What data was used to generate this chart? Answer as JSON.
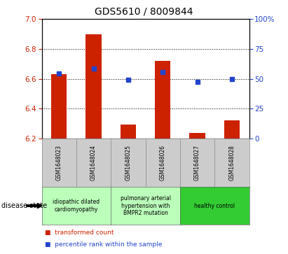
{
  "title": "GDS5610 / 8009844",
  "samples": [
    "GSM1648023",
    "GSM1648024",
    "GSM1648025",
    "GSM1648026",
    "GSM1648027",
    "GSM1648028"
  ],
  "red_values": [
    6.63,
    6.9,
    6.295,
    6.72,
    6.235,
    6.32
  ],
  "blue_values": [
    6.635,
    6.67,
    6.595,
    6.645,
    6.578,
    6.598
  ],
  "ylim_left": [
    6.2,
    7.0
  ],
  "ylim_right": [
    0,
    100
  ],
  "yticks_left": [
    6.2,
    6.4,
    6.6,
    6.8,
    7.0
  ],
  "yticks_right": [
    0,
    25,
    50,
    75,
    100
  ],
  "bar_bottom": 6.2,
  "bar_color": "#cc2200",
  "blue_color": "#2244cc",
  "tick_label_color_left": "#cc2200",
  "tick_label_color_right": "#2244cc",
  "disease_groups": [
    {
      "label": "idiopathic dilated\ncardiomyopathy",
      "indices": [
        0,
        1
      ],
      "color": "#bbffbb"
    },
    {
      "label": "pulmonary arterial\nhypertension with\nBMPR2 mutation",
      "indices": [
        2,
        3
      ],
      "color": "#bbffbb"
    },
    {
      "label": "healthy control",
      "indices": [
        4,
        5
      ],
      "color": "#33cc33"
    }
  ],
  "legend_items": [
    {
      "label": "transformed count",
      "color": "#cc2200"
    },
    {
      "label": "percentile rank within the sample",
      "color": "#2244cc"
    }
  ],
  "disease_state_label": "disease state",
  "bar_width": 0.45
}
